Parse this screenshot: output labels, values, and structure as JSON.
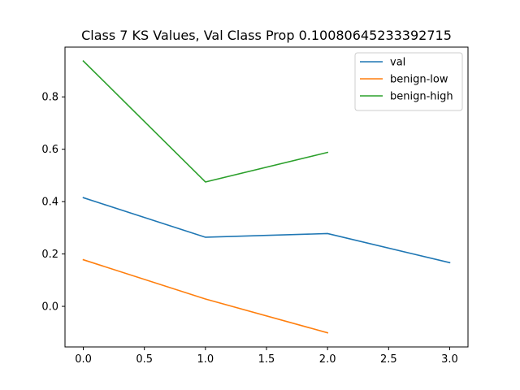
{
  "chart_data": {
    "type": "line",
    "title": "Class 7 KS Values, Val Class Prop 0.10080645233392715",
    "xlabel": "",
    "ylabel": "",
    "xlim": [
      -0.15,
      3.15
    ],
    "ylim": [
      -0.155,
      0.99
    ],
    "xticks": [
      0.0,
      0.5,
      1.0,
      1.5,
      2.0,
      2.5,
      3.0
    ],
    "xtick_labels": [
      "0.0",
      "0.5",
      "1.0",
      "1.5",
      "2.0",
      "2.5",
      "3.0"
    ],
    "yticks": [
      0.0,
      0.2,
      0.4,
      0.6,
      0.8
    ],
    "ytick_labels": [
      "0.0",
      "0.2",
      "0.4",
      "0.6",
      "0.8"
    ],
    "grid": false,
    "legend_position": "top-right",
    "series": [
      {
        "name": "val",
        "color": "#1f77b4",
        "x": [
          0,
          1,
          2,
          3
        ],
        "y": [
          0.415,
          0.264,
          0.278,
          0.167
        ]
      },
      {
        "name": "benign-low",
        "color": "#ff7f0e",
        "x": [
          0,
          1,
          2
        ],
        "y": [
          0.178,
          0.028,
          -0.101
        ]
      },
      {
        "name": "benign-high",
        "color": "#2ca02c",
        "x": [
          0,
          1,
          2
        ],
        "y": [
          0.937,
          0.475,
          0.588
        ]
      }
    ]
  }
}
